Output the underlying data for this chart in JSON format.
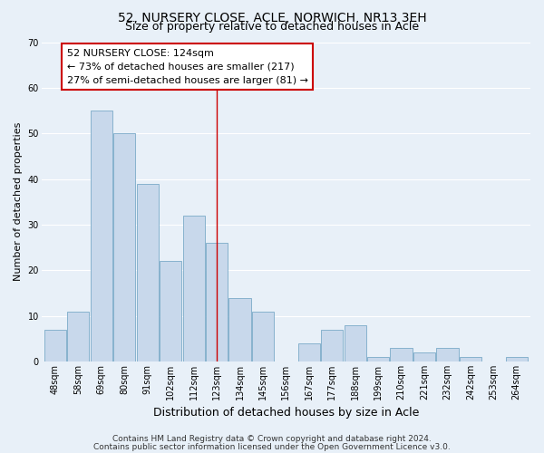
{
  "title": "52, NURSERY CLOSE, ACLE, NORWICH, NR13 3EH",
  "subtitle": "Size of property relative to detached houses in Acle",
  "xlabel": "Distribution of detached houses by size in Acle",
  "ylabel": "Number of detached properties",
  "bar_labels": [
    "48sqm",
    "58sqm",
    "69sqm",
    "80sqm",
    "91sqm",
    "102sqm",
    "112sqm",
    "123sqm",
    "134sqm",
    "145sqm",
    "156sqm",
    "167sqm",
    "177sqm",
    "188sqm",
    "199sqm",
    "210sqm",
    "221sqm",
    "232sqm",
    "242sqm",
    "253sqm",
    "264sqm"
  ],
  "bar_values": [
    7,
    11,
    55,
    50,
    39,
    22,
    32,
    26,
    14,
    11,
    0,
    4,
    7,
    8,
    1,
    3,
    2,
    3,
    1,
    0,
    1
  ],
  "bar_color": "#c8d8eb",
  "bar_edge_color": "#7aaac8",
  "vline_index": 7,
  "annotation_title": "52 NURSERY CLOSE: 124sqm",
  "annotation_line1": "← 73% of detached houses are smaller (217)",
  "annotation_line2": "27% of semi-detached houses are larger (81) →",
  "annotation_box_color": "#ffffff",
  "annotation_box_edge": "#cc0000",
  "vline_color": "#cc0000",
  "ylim": [
    0,
    70
  ],
  "yticks": [
    0,
    10,
    20,
    30,
    40,
    50,
    60,
    70
  ],
  "footer1": "Contains HM Land Registry data © Crown copyright and database right 2024.",
  "footer2": "Contains public sector information licensed under the Open Government Licence v3.0.",
  "background_color": "#e8f0f8",
  "title_fontsize": 10,
  "subtitle_fontsize": 9,
  "ylabel_fontsize": 8,
  "xlabel_fontsize": 9,
  "tick_fontsize": 7,
  "annotation_fontsize": 8,
  "footer_fontsize": 6.5
}
